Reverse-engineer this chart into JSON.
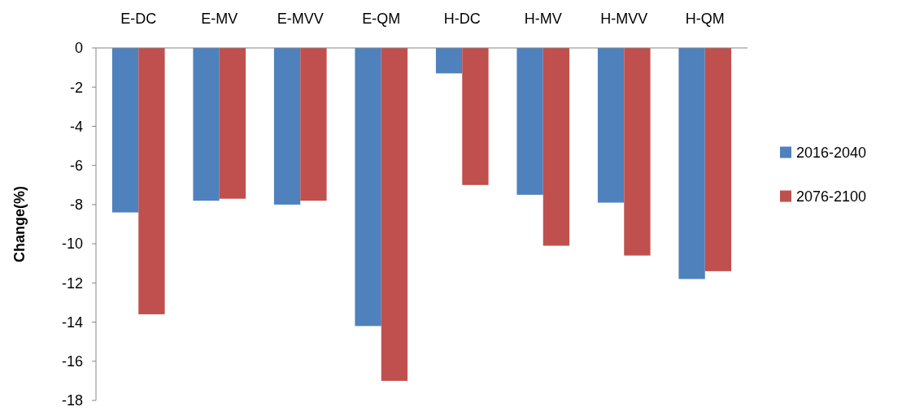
{
  "chart_data": {
    "type": "bar",
    "ylabel": "Change(%)",
    "categories": [
      "E-DC",
      "E-MV",
      "E-MVV",
      "E-QM",
      "H-DC",
      "H-MV",
      "H-MVV",
      "H-QM"
    ],
    "series": [
      {
        "name": "2016-2040",
        "color": "#4f81bd",
        "values": [
          -8.4,
          -7.8,
          -8.0,
          -14.2,
          -1.3,
          -7.5,
          -7.9,
          -11.8
        ]
      },
      {
        "name": "2076-2100",
        "color": "#c0504d",
        "values": [
          -13.6,
          -7.7,
          -7.8,
          -17.0,
          -7.0,
          -10.1,
          -10.6,
          -11.4
        ]
      }
    ],
    "ylim": [
      -18,
      0
    ],
    "yticks": [
      0,
      -2,
      -4,
      -6,
      -8,
      -10,
      -12,
      -14,
      -16,
      -18
    ],
    "grid": false,
    "legend": "right"
  }
}
